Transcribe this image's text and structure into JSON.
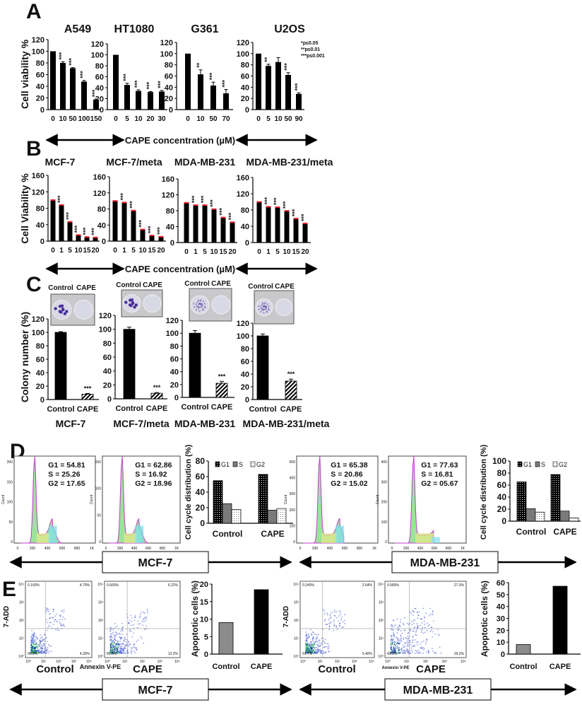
{
  "panel_labels": {
    "A": "A",
    "B": "B",
    "C": "C",
    "D": "D",
    "E": "E"
  },
  "colors": {
    "bar": "#000000",
    "bar_cap_B": "#e8202a",
    "grey_bar": "#8c8c8c",
    "histogram_fill": "#9be39b",
    "dish": "#d9d9e6",
    "colony": "#4b2f9a"
  },
  "axis_note": "CAPE concentration (µM)",
  "significance_legend": [
    "*p≤0.05",
    "**p≤0.01",
    "***p≤0.001"
  ],
  "chart_data": [
    {
      "id": "A",
      "type": "bar",
      "ylabel": "Cell viability %",
      "ylim": [
        0,
        120
      ],
      "yticks": [
        0,
        20,
        40,
        60,
        80,
        100,
        120
      ],
      "xlabel": "CAPE concentration (µM)",
      "charts": [
        {
          "title": "A549",
          "categories": [
            "0",
            "10",
            "50",
            "100",
            "150"
          ],
          "values": [
            100,
            80,
            71,
            48,
            17
          ],
          "errors": [
            0,
            2,
            1,
            2,
            1
          ],
          "sig": [
            "",
            "***",
            "***",
            "***",
            "***"
          ]
        },
        {
          "title": "HT1080",
          "categories": [
            "0",
            "5",
            "10",
            "20",
            "30"
          ],
          "values": [
            100,
            45,
            34,
            32,
            33
          ],
          "errors": [
            0,
            3,
            2,
            1,
            2
          ],
          "sig": [
            "",
            "***",
            "***",
            "***",
            "***"
          ]
        },
        {
          "title": "G361",
          "categories": [
            "0",
            "10",
            "50",
            "70"
          ],
          "values": [
            100,
            63,
            43,
            29
          ],
          "errors": [
            0,
            8,
            6,
            7
          ],
          "sig": [
            "",
            "**",
            "***",
            "***"
          ]
        },
        {
          "title": "U2OS",
          "categories": [
            "0",
            "5",
            "10",
            "50",
            "90"
          ],
          "values": [
            100,
            78,
            85,
            62,
            28
          ],
          "errors": [
            0,
            3,
            8,
            4,
            2
          ],
          "sig": [
            "",
            "**",
            "",
            "***",
            "***"
          ]
        }
      ]
    },
    {
      "id": "B",
      "type": "bar",
      "ylabel": "Cell Viability %",
      "ylim": [
        0,
        160
      ],
      "yticks": [
        0,
        40,
        80,
        120,
        160
      ],
      "xlabel": "CAPE concentration (µM)",
      "charts": [
        {
          "title": "MCF-7",
          "categories": [
            "0",
            "1",
            "5",
            "10",
            "15",
            "20"
          ],
          "values": [
            100,
            88,
            47,
            15,
            10,
            9
          ],
          "sig": [
            "",
            "***",
            "***",
            "***",
            "***",
            "***"
          ]
        },
        {
          "title": "MCF-7/meta",
          "categories": [
            "0",
            "1",
            "5",
            "10",
            "15",
            "20"
          ],
          "values": [
            100,
            96,
            76,
            29,
            14,
            11
          ],
          "sig": [
            "",
            "***",
            "***",
            "***",
            "***",
            "***"
          ]
        },
        {
          "title": "MDA-MB-231",
          "categories": [
            "0",
            "1",
            "5",
            "10",
            "15",
            "20"
          ],
          "values": [
            100,
            94,
            94,
            84,
            63,
            51
          ],
          "sig": [
            "",
            "***",
            "***",
            "***",
            "***",
            "***"
          ]
        },
        {
          "title": "MDA-MB-231/meta",
          "categories": [
            "0",
            "1",
            "5",
            "10",
            "15",
            "20"
          ],
          "values": [
            100,
            88,
            87,
            78,
            59,
            47
          ],
          "sig": [
            "",
            "***",
            "***",
            "***",
            "***",
            "***"
          ]
        }
      ]
    },
    {
      "id": "C",
      "type": "bar",
      "ylabel": "Colony number (%)",
      "ylim": [
        0,
        120
      ],
      "yticks": [
        0,
        20,
        40,
        60,
        80,
        100,
        120
      ],
      "charts": [
        {
          "title": "MCF-7",
          "categories": [
            "Control",
            "CAPE"
          ],
          "values": [
            100,
            8
          ],
          "errors": [
            1,
            1
          ],
          "sig": [
            "",
            "***"
          ],
          "photo_labels": [
            "Control",
            "CAPE"
          ]
        },
        {
          "title": "MCF-7/meta",
          "categories": [
            "Control",
            "CAPE"
          ],
          "values": [
            100,
            8
          ],
          "errors": [
            3,
            1
          ],
          "sig": [
            "",
            "***"
          ],
          "photo_labels": [
            "Control",
            "CAPE"
          ]
        },
        {
          "title": "MDA-MB-231",
          "categories": [
            "Control",
            "CAPE"
          ],
          "values": [
            100,
            22
          ],
          "errors": [
            4,
            3
          ],
          "sig": [
            "",
            "***"
          ],
          "photo_labels": [
            "Control",
            "CAPE"
          ]
        },
        {
          "title": "MDA-MB-231/meta",
          "categories": [
            "Control",
            "CAPE"
          ],
          "values": [
            100,
            29
          ],
          "errors": [
            3,
            3
          ],
          "sig": [
            "",
            "***"
          ],
          "photo_labels": [
            "Control",
            "CAPE"
          ]
        }
      ]
    },
    {
      "id": "D",
      "type": "bar",
      "ylabel": "Cell cycle distribution (%)",
      "histograms": [
        {
          "cell_line": "MCF-7",
          "condition": "Control",
          "stats": [
            "G1 = 54.81",
            "S  = 25.26",
            "G2 = 17.65"
          ],
          "yticks": [
            "0",
            "50",
            "100",
            "150",
            "200"
          ],
          "xticks": [
            "0",
            "200",
            "400",
            "600",
            "800",
            "1K"
          ],
          "ylabel": "Count"
        },
        {
          "cell_line": "MCF-7",
          "condition": "CAPE",
          "stats": [
            "G1 = 62.86",
            "S  = 16.92",
            "G2 = 18.96"
          ],
          "yticks": [
            "0",
            "50",
            "100",
            "150"
          ],
          "xticks": [
            "0",
            "200",
            "400",
            "600",
            "800",
            "1K"
          ],
          "ylabel": "Count"
        },
        {
          "cell_line": "MDA-MB-231",
          "condition": "Control",
          "stats": [
            "G1 = 65.38",
            "S  = 20.86",
            "G2 = 15.02"
          ],
          "yticks": [
            "0",
            "100",
            "200",
            "300",
            "400",
            "500"
          ],
          "xticks": [
            "0",
            "200",
            "400",
            "600",
            "800",
            "1K"
          ],
          "ylabel": "Count"
        },
        {
          "cell_line": "MDA-MB-231",
          "condition": "CAPE",
          "stats": [
            "G1 = 77.63",
            "S  = 16.81",
            "G2 = 05.67"
          ],
          "yticks": [
            "0",
            "100",
            "200",
            "300",
            "400"
          ],
          "xticks": [
            "0",
            "200",
            "400",
            "600",
            "800",
            "1K"
          ],
          "ylabel": "Count"
        }
      ],
      "charts": [
        {
          "cell_line": "MCF-7",
          "ylim": [
            0,
            80
          ],
          "yticks": [
            0,
            20,
            40,
            60,
            80
          ],
          "categories": [
            "Control",
            "CAPE"
          ],
          "series": [
            {
              "name": "G1",
              "values": [
                54.81,
                62.86
              ]
            },
            {
              "name": "S",
              "values": [
                25.26,
                16.92
              ]
            },
            {
              "name": "G2",
              "values": [
                17.65,
                18.96
              ]
            }
          ]
        },
        {
          "cell_line": "MDA-MB-231",
          "ylim": [
            0,
            100
          ],
          "yticks": [
            0,
            20,
            40,
            60,
            80,
            100
          ],
          "categories": [
            "Control",
            "CAPE"
          ],
          "series": [
            {
              "name": "G1",
              "values": [
                65.38,
                77.63
              ]
            },
            {
              "name": "S",
              "values": [
                20.86,
                16.81
              ]
            },
            {
              "name": "G2",
              "values": [
                15.02,
                5.67
              ]
            }
          ]
        }
      ],
      "group_labels": [
        "MCF-7",
        "MDA-MB-231"
      ]
    },
    {
      "id": "E",
      "type": "bar",
      "ylabel": "Apoptotic cells (%)",
      "flow": {
        "ylabel": "7-ADD",
        "xlabel": "Annexin V-PE",
        "ticks": [
          "10⁰",
          "10¹",
          "10²",
          "10³",
          "10⁴"
        ],
        "plots": [
          {
            "cell_line": "MCF-7",
            "condition": "Control",
            "Q1": "0.160%",
            "Q2": "4.70%",
            "Q3": "4.20%",
            "Q4": "90.9%"
          },
          {
            "cell_line": "MCF-7",
            "condition": "CAPE",
            "Q1": "0.660%",
            "Q2": "6.22%",
            "Q3": "12.2%",
            "Q4": "80.9%"
          },
          {
            "cell_line": "MDA-MB-231",
            "condition": "Control",
            "Q1": "0.240%",
            "Q2": "2.64%",
            "Q3": "5.40%",
            "Q4": "91.7%"
          },
          {
            "cell_line": "MDA-MB-231",
            "condition": "CAPE",
            "Q1": "0.580%",
            "Q2": "27.3%",
            "Q3": "29.2%",
            "Q4": "42.9%"
          }
        ]
      },
      "charts": [
        {
          "cell_line": "MCF-7",
          "ylim": [
            0,
            20
          ],
          "yticks": [
            0,
            5,
            10,
            15,
            20
          ],
          "categories": [
            "Control",
            "CAPE"
          ],
          "values": [
            9,
            18.4
          ]
        },
        {
          "cell_line": "MDA-MB-231",
          "ylim": [
            0,
            60
          ],
          "yticks": [
            0,
            10,
            20,
            30,
            40,
            50,
            60
          ],
          "categories": [
            "Control",
            "CAPE"
          ],
          "values": [
            8,
            57
          ]
        }
      ],
      "group_labels": [
        "MCF-7",
        "MDA-MB-231"
      ]
    }
  ]
}
